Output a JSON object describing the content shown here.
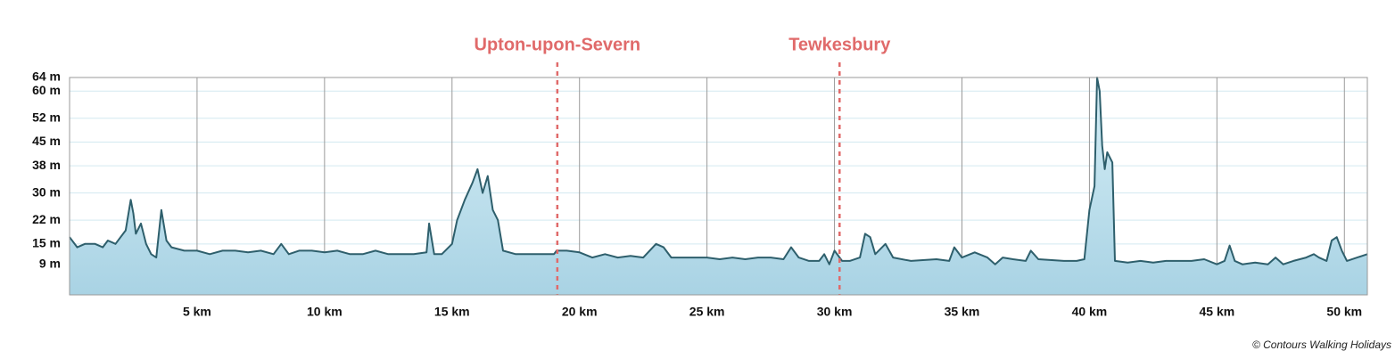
{
  "chart_data": {
    "type": "area",
    "x": [
      0,
      0.3,
      0.6,
      1.0,
      1.3,
      1.5,
      1.8,
      2.0,
      2.2,
      2.4,
      2.5,
      2.6,
      2.8,
      3.0,
      3.2,
      3.4,
      3.6,
      3.8,
      4.0,
      4.5,
      5.0,
      5.5,
      6.0,
      6.5,
      7.0,
      7.5,
      8.0,
      8.3,
      8.6,
      9.0,
      9.5,
      10.0,
      10.5,
      11.0,
      11.5,
      12.0,
      12.5,
      13.0,
      13.5,
      14.0,
      14.1,
      14.3,
      14.6,
      15.0,
      15.2,
      15.5,
      15.8,
      16.0,
      16.2,
      16.4,
      16.6,
      16.8,
      17.0,
      17.5,
      18.0,
      18.5,
      19.0,
      19.1,
      19.5,
      20.0,
      20.5,
      21.0,
      21.5,
      22.0,
      22.5,
      23.0,
      23.3,
      23.6,
      24.0,
      25.0,
      25.5,
      26.0,
      26.5,
      27.0,
      27.5,
      28.0,
      28.3,
      28.6,
      29.0,
      29.4,
      29.6,
      29.8,
      30.0,
      30.3,
      30.6,
      31.0,
      31.2,
      31.4,
      31.6,
      32.0,
      32.3,
      33.0,
      34.0,
      34.5,
      34.7,
      35.0,
      35.5,
      36.0,
      36.3,
      36.6,
      37.0,
      37.5,
      37.7,
      38.0,
      39.0,
      39.5,
      39.8,
      40.0,
      40.2,
      40.3,
      40.4,
      40.5,
      40.6,
      40.7,
      40.9,
      41.0,
      41.5,
      42.0,
      42.5,
      43.0,
      43.5,
      44.0,
      44.5,
      45.0,
      45.3,
      45.5,
      45.7,
      46.0,
      46.5,
      47.0,
      47.3,
      47.6,
      48.0,
      48.5,
      48.8,
      49.0,
      49.3,
      49.5,
      49.7,
      49.9,
      50.1,
      50.5,
      50.9
    ],
    "values": [
      17,
      14,
      15,
      15,
      14,
      16,
      15,
      17,
      19,
      28,
      24,
      18,
      21,
      15,
      12,
      11,
      25,
      16,
      14,
      13,
      13,
      12,
      13,
      13,
      12.5,
      13,
      12,
      15,
      12,
      13,
      13,
      12.5,
      13,
      12,
      12,
      13,
      12,
      12,
      12,
      12.5,
      21,
      12,
      12,
      15,
      22,
      28,
      33,
      37,
      30,
      35,
      25,
      22,
      13,
      12,
      12,
      12,
      12,
      13,
      13,
      12.5,
      11,
      12,
      11,
      11.5,
      11,
      15,
      14,
      11,
      11,
      11,
      10.5,
      11,
      10.5,
      11,
      11,
      10.5,
      14,
      11,
      10,
      10,
      12,
      9,
      13,
      10,
      10,
      11,
      18,
      17,
      12,
      15,
      11,
      10,
      10.5,
      10,
      14,
      11,
      12.5,
      11,
      9,
      11,
      10.5,
      10,
      13,
      10.5,
      10,
      10,
      10.5,
      25,
      32,
      64,
      60,
      44,
      37,
      42,
      39,
      10,
      9.5,
      10,
      9.5,
      10,
      10,
      10,
      10.5,
      9,
      10,
      14.5,
      10,
      9,
      9.5,
      9,
      11,
      9,
      10,
      11,
      12,
      11,
      10,
      16,
      17,
      13,
      10,
      11,
      12
    ],
    "xlim": [
      0,
      50.9
    ],
    "ylim": [
      0,
      64
    ],
    "xticks": [
      {
        "value": 5,
        "label": "5 km"
      },
      {
        "value": 10,
        "label": "10 km"
      },
      {
        "value": 15,
        "label": "15 km"
      },
      {
        "value": 20,
        "label": "20 km"
      },
      {
        "value": 25,
        "label": "25 km"
      },
      {
        "value": 30,
        "label": "30 km"
      },
      {
        "value": 35,
        "label": "35 km"
      },
      {
        "value": 40,
        "label": "40 km"
      },
      {
        "value": 45,
        "label": "45 km"
      },
      {
        "value": 50,
        "label": "50 km"
      }
    ],
    "yticks": [
      {
        "value": 9,
        "label": "9 m"
      },
      {
        "value": 15,
        "label": "15 m"
      },
      {
        "value": 22,
        "label": "22 m"
      },
      {
        "value": 30,
        "label": "30 m"
      },
      {
        "value": 38,
        "label": "38 m"
      },
      {
        "value": 45,
        "label": "45 m"
      },
      {
        "value": 52,
        "label": "52 m"
      },
      {
        "value": 60,
        "label": "60 m"
      },
      {
        "value": 64,
        "label": "64 m"
      }
    ],
    "color": "#2e5f6c",
    "fill": "#bfe1ee",
    "grid": true,
    "markers": [
      {
        "label": "Upton-upon-Severn",
        "x": 19.13,
        "color": "#e06a6a"
      },
      {
        "label": "Tewkesbury",
        "x": 30.2,
        "color": "#e06a6a"
      }
    ],
    "credit": "© Contours Walking Holidays"
  }
}
